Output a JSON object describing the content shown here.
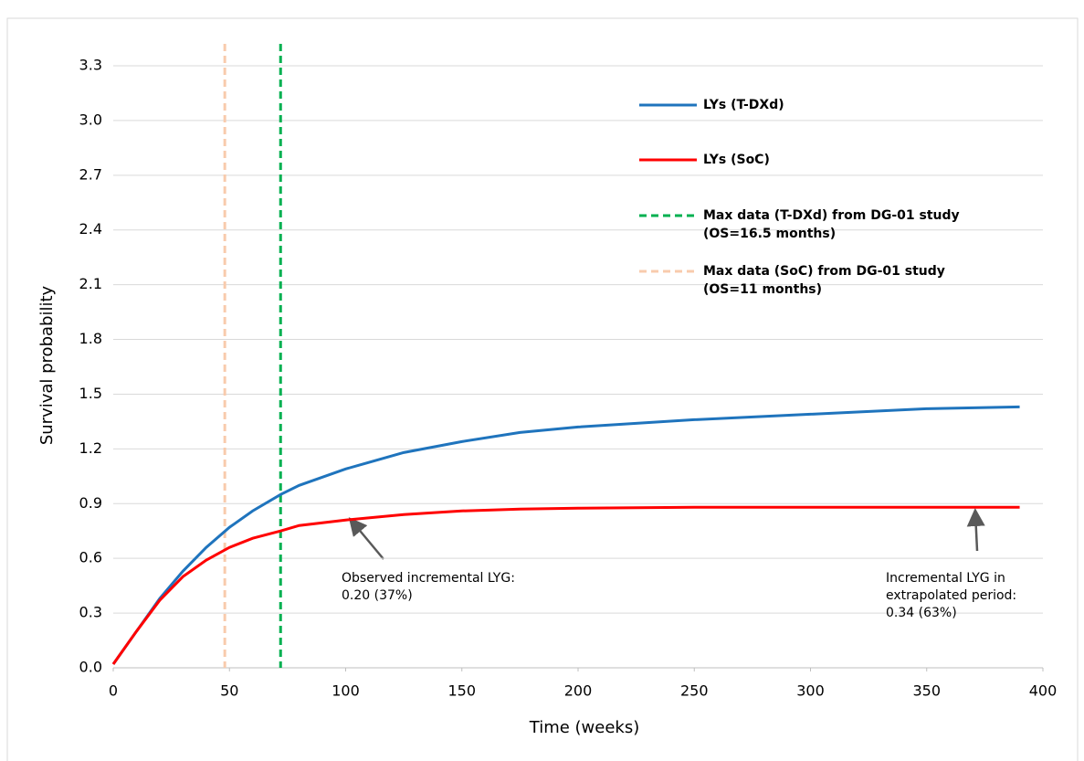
{
  "chart_data": {
    "type": "line",
    "x_label": "Time  (weeks)",
    "y_label": "Survival probability",
    "x": [
      0,
      10,
      20,
      30,
      40,
      50,
      60,
      72,
      80,
      100,
      125,
      150,
      175,
      200,
      250,
      300,
      350,
      390
    ],
    "series": [
      {
        "name": "LYs (T-DXd)",
        "color": "#1f74bd",
        "values": [
          0.02,
          0.2,
          0.38,
          0.53,
          0.66,
          0.77,
          0.86,
          0.95,
          1.0,
          1.09,
          1.18,
          1.24,
          1.29,
          1.32,
          1.36,
          1.39,
          1.42,
          1.43
        ]
      },
      {
        "name": "LYs (SoC)",
        "color": "#ff0000",
        "values": [
          0.02,
          0.2,
          0.37,
          0.5,
          0.59,
          0.66,
          0.71,
          0.75,
          0.78,
          0.81,
          0.84,
          0.86,
          0.87,
          0.875,
          0.88,
          0.88,
          0.88,
          0.88
        ]
      }
    ],
    "reference_lines": [
      {
        "name": "Max data (T-DXd) from DG-01 study (OS=16.5 months)",
        "color": "#00b050",
        "x": 72
      },
      {
        "name": "Max data (SoC) from DG-01 study (OS=11 months)",
        "color": "#f8cbad",
        "x": 48
      }
    ],
    "annotations": [
      "Observed incremental LYG: 0.20 (37%)",
      "Incremental LYG in extrapolated period: 0.34 (63%)"
    ],
    "xlim": [
      0,
      400
    ],
    "xticks": [
      0,
      50,
      100,
      150,
      200,
      250,
      300,
      350,
      400
    ],
    "ylim": [
      0,
      3.3
    ],
    "yticks": [
      {
        "value": 0,
        "label": "0.0"
      },
      0.3,
      0.6,
      0.9,
      1.2,
      1.5,
      1.8,
      2.1,
      2.4,
      2.7,
      {
        "value": 3,
        "label": "3.0"
      },
      3.3
    ],
    "grid": true
  }
}
